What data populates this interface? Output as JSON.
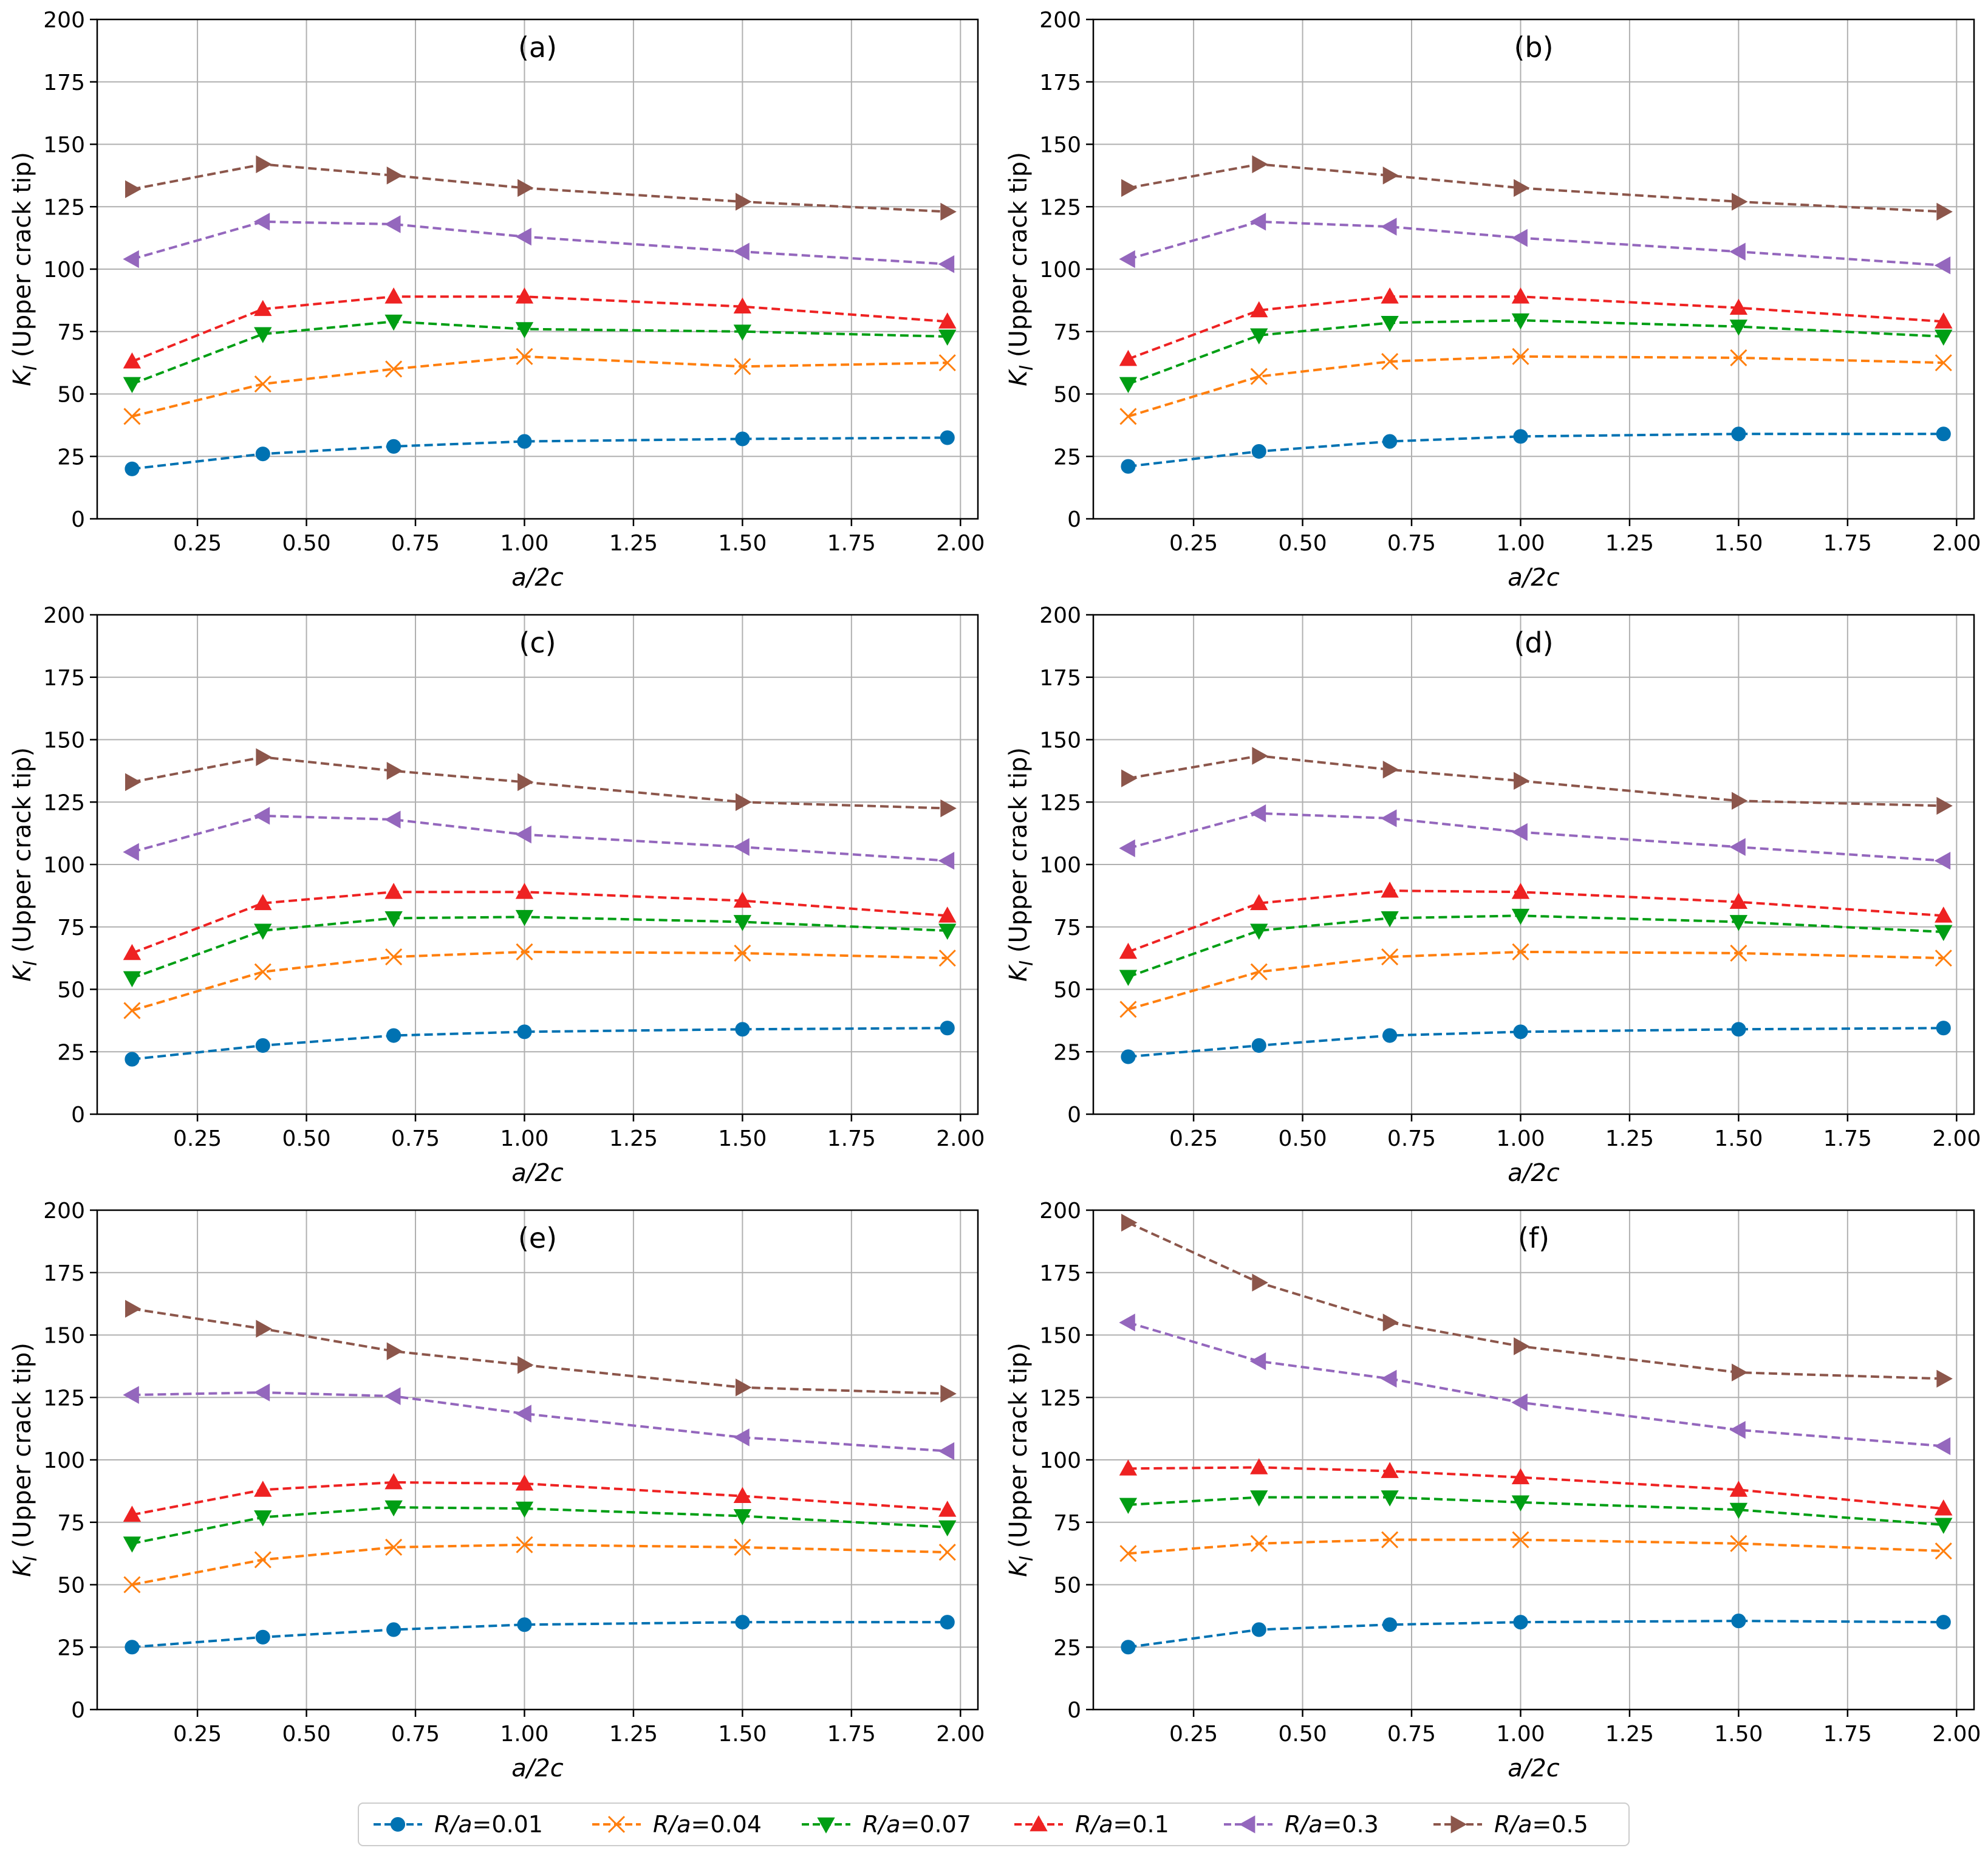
{
  "chart_data": [
    {
      "type": "line",
      "title": "(a)",
      "xlabel": "a/2c",
      "ylabel": "K_I (Upper crack tip)",
      "x": [
        0.1,
        0.4,
        0.7,
        1.0,
        1.5,
        1.97
      ],
      "xlim": [
        0.02,
        2.04
      ],
      "ylim": [
        0,
        200
      ],
      "xticks": [
        0.25,
        0.5,
        0.75,
        1.0,
        1.25,
        1.5,
        1.75,
        2.0
      ],
      "xtick_labels": [
        "0.25",
        "0.50",
        "0.75",
        "1.00",
        "1.25",
        "1.50",
        "1.75",
        "2.00"
      ],
      "yticks": [
        0,
        25,
        50,
        75,
        100,
        125,
        150,
        175,
        200
      ],
      "ytick_labels": [
        "0",
        "25",
        "50",
        "75",
        "100",
        "125",
        "150",
        "175",
        "200"
      ],
      "grid": true,
      "series": [
        {
          "name": "R/a=0.01",
          "values": [
            20,
            26,
            29,
            31,
            32,
            32.5
          ]
        },
        {
          "name": "R/a=0.04",
          "values": [
            41,
            54,
            60,
            65,
            61,
            62.5
          ]
        },
        {
          "name": "R/a=0.07",
          "values": [
            54,
            74,
            79,
            76,
            75,
            73
          ]
        },
        {
          "name": "R/a=0.1",
          "values": [
            63,
            84,
            89,
            89,
            85,
            79
          ]
        },
        {
          "name": "R/a=0.3",
          "values": [
            104,
            119,
            118,
            113,
            107,
            102
          ]
        },
        {
          "name": "R/a=0.5",
          "values": [
            132,
            142,
            137.5,
            132.5,
            127,
            123
          ]
        }
      ]
    },
    {
      "type": "line",
      "title": "(b)",
      "xlabel": "a/2c",
      "ylabel": "K_I (Upper crack tip)",
      "x": [
        0.1,
        0.4,
        0.7,
        1.0,
        1.5,
        1.97
      ],
      "xlim": [
        0.02,
        2.04
      ],
      "ylim": [
        0,
        200
      ],
      "xticks": [
        0.25,
        0.5,
        0.75,
        1.0,
        1.25,
        1.5,
        1.75,
        2.0
      ],
      "xtick_labels": [
        "0.25",
        "0.50",
        "0.75",
        "1.00",
        "1.25",
        "1.50",
        "1.75",
        "2.00"
      ],
      "yticks": [
        0,
        25,
        50,
        75,
        100,
        125,
        150,
        175,
        200
      ],
      "ytick_labels": [
        "0",
        "25",
        "50",
        "75",
        "100",
        "125",
        "150",
        "175",
        "200"
      ],
      "grid": true,
      "series": [
        {
          "name": "R/a=0.01",
          "values": [
            21,
            27,
            31,
            33,
            34,
            34
          ]
        },
        {
          "name": "R/a=0.04",
          "values": [
            41,
            57,
            63,
            65,
            64.5,
            62.5
          ]
        },
        {
          "name": "R/a=0.07",
          "values": [
            54,
            73.5,
            78.5,
            79.5,
            77,
            73
          ]
        },
        {
          "name": "R/a=0.1",
          "values": [
            64,
            83.5,
            89,
            89,
            84.5,
            79
          ]
        },
        {
          "name": "R/a=0.3",
          "values": [
            104,
            119,
            117,
            112.5,
            107,
            101.5
          ]
        },
        {
          "name": "R/a=0.5",
          "values": [
            132.5,
            142,
            137.5,
            132.5,
            127,
            123
          ]
        }
      ]
    },
    {
      "type": "line",
      "title": "(c)",
      "xlabel": "a/2c",
      "ylabel": "K_I (Upper crack tip)",
      "x": [
        0.1,
        0.4,
        0.7,
        1.0,
        1.5,
        1.97
      ],
      "xlim": [
        0.02,
        2.04
      ],
      "ylim": [
        0,
        200
      ],
      "xticks": [
        0.25,
        0.5,
        0.75,
        1.0,
        1.25,
        1.5,
        1.75,
        2.0
      ],
      "xtick_labels": [
        "0.25",
        "0.50",
        "0.75",
        "1.00",
        "1.25",
        "1.50",
        "1.75",
        "2.00"
      ],
      "yticks": [
        0,
        25,
        50,
        75,
        100,
        125,
        150,
        175,
        200
      ],
      "ytick_labels": [
        "0",
        "25",
        "50",
        "75",
        "100",
        "125",
        "150",
        "175",
        "200"
      ],
      "grid": true,
      "series": [
        {
          "name": "R/a=0.01",
          "values": [
            22,
            27.5,
            31.5,
            33,
            34,
            34.5
          ]
        },
        {
          "name": "R/a=0.04",
          "values": [
            41.5,
            57,
            63,
            65,
            64.5,
            62.5
          ]
        },
        {
          "name": "R/a=0.07",
          "values": [
            54.5,
            73.5,
            78.5,
            79,
            77,
            73.5
          ]
        },
        {
          "name": "R/a=0.1",
          "values": [
            64.5,
            84.5,
            89,
            89,
            85.5,
            79.5
          ]
        },
        {
          "name": "R/a=0.3",
          "values": [
            105,
            119.5,
            118,
            112,
            107,
            101.5
          ]
        },
        {
          "name": "R/a=0.5",
          "values": [
            133,
            143,
            137.5,
            133,
            125,
            122.5
          ]
        }
      ]
    },
    {
      "type": "line",
      "title": "(d)",
      "xlabel": "a/2c",
      "ylabel": "K_I (Upper crack tip)",
      "x": [
        0.1,
        0.4,
        0.7,
        1.0,
        1.5,
        1.97
      ],
      "xlim": [
        0.02,
        2.04
      ],
      "ylim": [
        0,
        200
      ],
      "xticks": [
        0.25,
        0.5,
        0.75,
        1.0,
        1.25,
        1.5,
        1.75,
        2.0
      ],
      "xtick_labels": [
        "0.25",
        "0.50",
        "0.75",
        "1.00",
        "1.25",
        "1.50",
        "1.75",
        "2.00"
      ],
      "yticks": [
        0,
        25,
        50,
        75,
        100,
        125,
        150,
        175,
        200
      ],
      "ytick_labels": [
        "0",
        "25",
        "50",
        "75",
        "100",
        "125",
        "150",
        "175",
        "200"
      ],
      "grid": true,
      "series": [
        {
          "name": "R/a=0.01",
          "values": [
            23,
            27.5,
            31.5,
            33,
            34,
            34.5
          ]
        },
        {
          "name": "R/a=0.04",
          "values": [
            42,
            57,
            63,
            65,
            64.5,
            62.5
          ]
        },
        {
          "name": "R/a=0.07",
          "values": [
            55,
            73.5,
            78.5,
            79.5,
            77,
            73
          ]
        },
        {
          "name": "R/a=0.1",
          "values": [
            65,
            84.5,
            89.5,
            89,
            85,
            79.5
          ]
        },
        {
          "name": "R/a=0.3",
          "values": [
            106.5,
            120.5,
            118.5,
            113,
            107,
            101.5
          ]
        },
        {
          "name": "R/a=0.5",
          "values": [
            134.5,
            143.5,
            138,
            133.5,
            125.5,
            123.5
          ]
        }
      ]
    },
    {
      "type": "line",
      "title": "(e)",
      "xlabel": "a/2c",
      "ylabel": "K_I (Upper crack tip)",
      "x": [
        0.1,
        0.4,
        0.7,
        1.0,
        1.5,
        1.97
      ],
      "xlim": [
        0.02,
        2.04
      ],
      "ylim": [
        0,
        200
      ],
      "xticks": [
        0.25,
        0.5,
        0.75,
        1.0,
        1.25,
        1.5,
        1.75,
        2.0
      ],
      "xtick_labels": [
        "0.25",
        "0.50",
        "0.75",
        "1.00",
        "1.25",
        "1.50",
        "1.75",
        "2.00"
      ],
      "yticks": [
        0,
        25,
        50,
        75,
        100,
        125,
        150,
        175,
        200
      ],
      "ytick_labels": [
        "0",
        "25",
        "50",
        "75",
        "100",
        "125",
        "150",
        "175",
        "200"
      ],
      "grid": true,
      "series": [
        {
          "name": "R/a=0.01",
          "values": [
            25,
            29,
            32,
            34,
            35,
            35
          ]
        },
        {
          "name": "R/a=0.04",
          "values": [
            50,
            60,
            65,
            66,
            65,
            63
          ]
        },
        {
          "name": "R/a=0.07",
          "values": [
            66.5,
            77,
            81,
            80.5,
            77.5,
            73
          ]
        },
        {
          "name": "R/a=0.1",
          "values": [
            78,
            88,
            91,
            90.5,
            85.5,
            80
          ]
        },
        {
          "name": "R/a=0.3",
          "values": [
            126,
            127,
            125.5,
            118.5,
            109,
            103.5
          ]
        },
        {
          "name": "R/a=0.5",
          "values": [
            160.5,
            152.5,
            143.5,
            138,
            129,
            126.5
          ]
        }
      ]
    },
    {
      "type": "line",
      "title": "(f)",
      "xlabel": "a/2c",
      "ylabel": "K_I (Upper crack tip)",
      "x": [
        0.1,
        0.4,
        0.7,
        1.0,
        1.5,
        1.97
      ],
      "xlim": [
        0.02,
        2.04
      ],
      "ylim": [
        0,
        200
      ],
      "xticks": [
        0.25,
        0.5,
        0.75,
        1.0,
        1.25,
        1.5,
        1.75,
        2.0
      ],
      "xtick_labels": [
        "0.25",
        "0.50",
        "0.75",
        "1.00",
        "1.25",
        "1.50",
        "1.75",
        "2.00"
      ],
      "yticks": [
        0,
        25,
        50,
        75,
        100,
        125,
        150,
        175,
        200
      ],
      "ytick_labels": [
        "0",
        "25",
        "50",
        "75",
        "100",
        "125",
        "150",
        "175",
        "200"
      ],
      "grid": true,
      "series": [
        {
          "name": "R/a=0.01",
          "values": [
            25,
            32,
            34,
            35,
            35.5,
            35
          ]
        },
        {
          "name": "R/a=0.04",
          "values": [
            62.5,
            66.5,
            68,
            68,
            66.5,
            63.5
          ]
        },
        {
          "name": "R/a=0.07",
          "values": [
            82,
            85,
            85,
            83,
            80,
            74
          ]
        },
        {
          "name": "R/a=0.1",
          "values": [
            96.5,
            97,
            95.5,
            93,
            88,
            80.5
          ]
        },
        {
          "name": "R/a=0.3",
          "values": [
            155,
            139.5,
            132.5,
            123,
            112,
            105.5
          ]
        },
        {
          "name": "R/a=0.5",
          "values": [
            195,
            171,
            155,
            145.5,
            135,
            132.5
          ]
        }
      ]
    }
  ],
  "legend": {
    "placement": "bottom-center",
    "entries": [
      {
        "label": "R/a=0.01",
        "color": "#0072b2",
        "marker": "circle"
      },
      {
        "label": "R/a=0.04",
        "color": "#ff7f0e",
        "marker": "x"
      },
      {
        "label": "R/a=0.07",
        "color": "#009e14",
        "marker": "triangle-down"
      },
      {
        "label": "R/a=0.1",
        "color": "#ee2222",
        "marker": "triangle-up"
      },
      {
        "label": "R/a=0.3",
        "color": "#9467bd",
        "marker": "triangle-left"
      },
      {
        "label": "R/a=0.5",
        "color": "#8c564b",
        "marker": "triangle-right"
      }
    ]
  }
}
